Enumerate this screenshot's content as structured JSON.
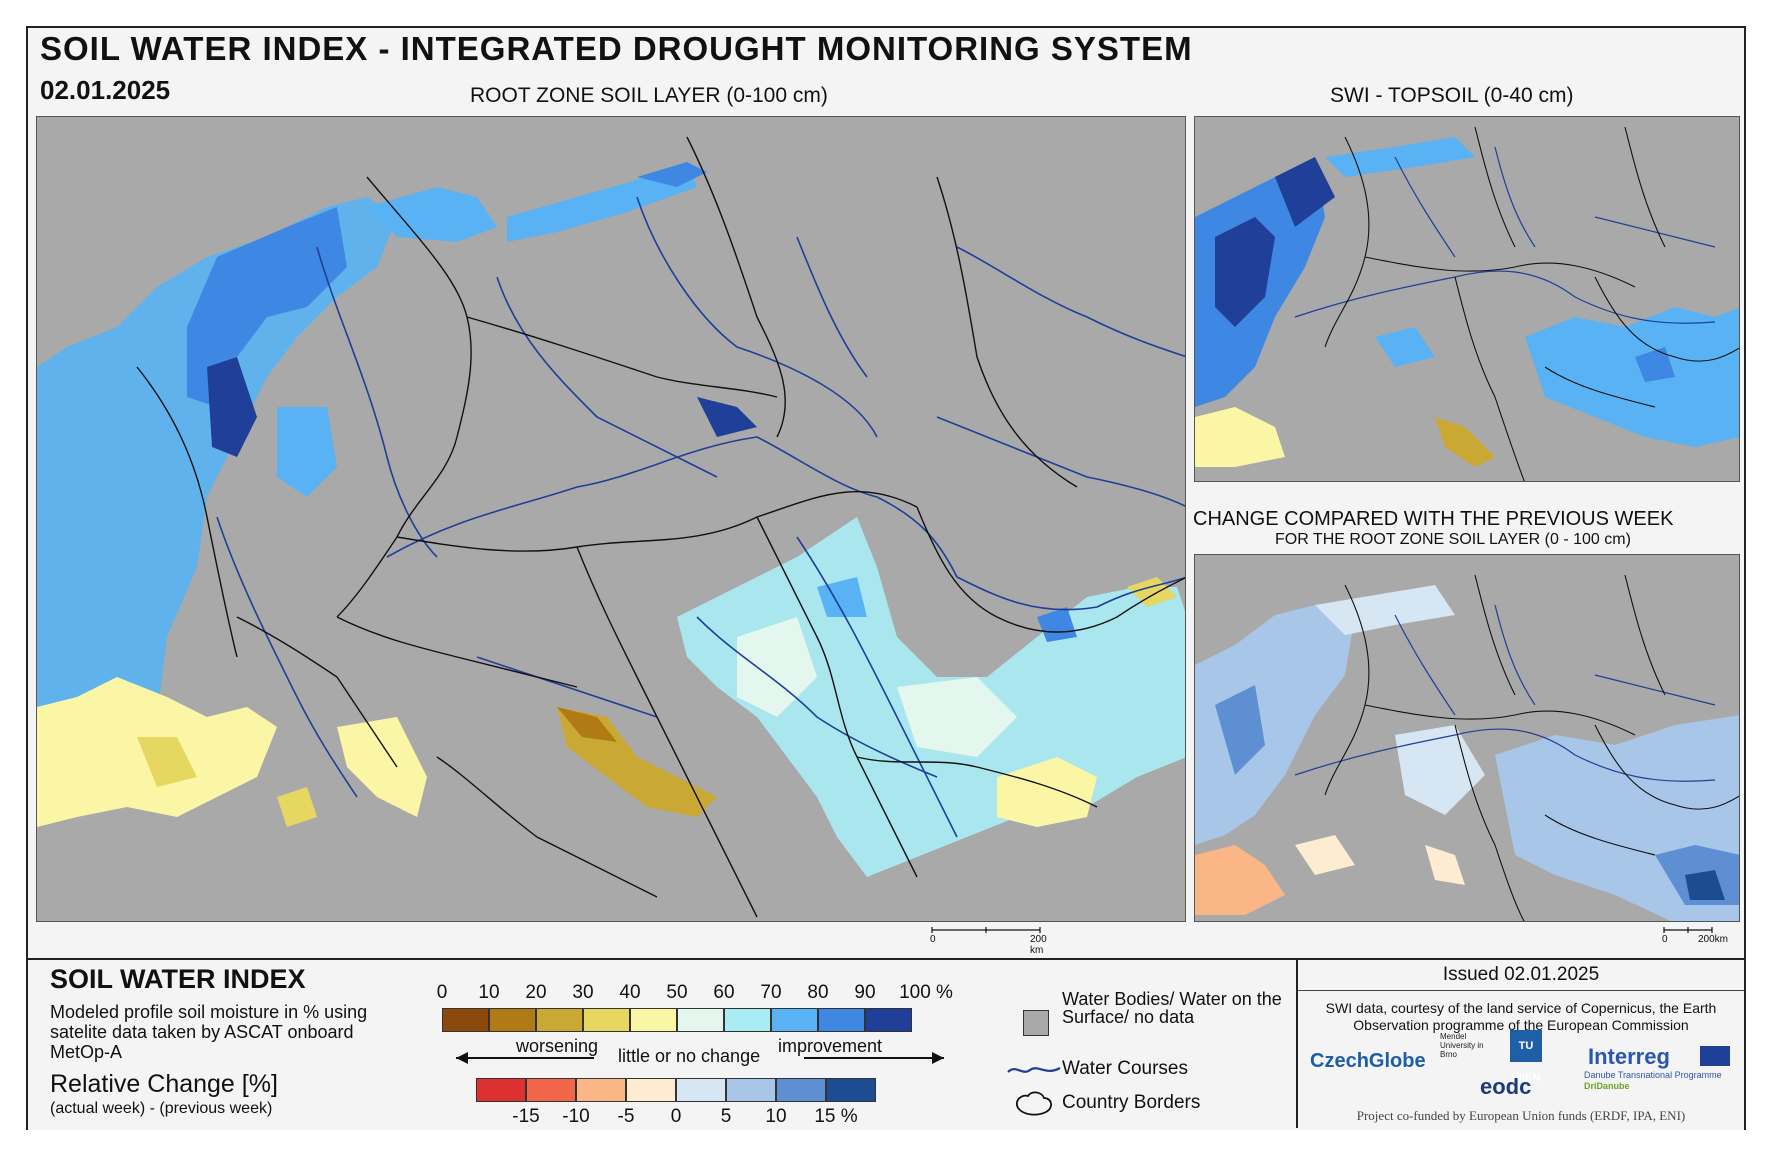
{
  "header": {
    "title": "SOIL WATER INDEX - INTEGRATED DROUGHT MONITORING SYSTEM",
    "date": "02.01.2025",
    "main_map_label": "ROOT ZONE SOIL LAYER (0-100 cm)",
    "topsoil_label": "SWI - TOPSOIL (0-40 cm)",
    "change_label": "CHANGE COMPARED WITH THE PREVIOUS WEEK",
    "change_sublabel": "FOR THE ROOT ZONE SOIL LAYER (0 - 100 cm)"
  },
  "scalebar": {
    "start": "0",
    "end": "200 km",
    "end_small": "200km"
  },
  "legend": {
    "title": "SOIL WATER INDEX",
    "description": "Modeled profile soil moisture in % using satelite data taken by ASCAT onboard MetOp-A",
    "relative_title": "Relative Change [%]",
    "relative_sub": "(actual week) - (previous week)",
    "swi_ticks": [
      "0",
      "10",
      "20",
      "30",
      "40",
      "50",
      "60",
      "70",
      "80",
      "90",
      "100 %"
    ],
    "swi_colors": [
      "#8b4a0c",
      "#b07a16",
      "#c9a933",
      "#e6d761",
      "#fbf6a6",
      "#e4f7ee",
      "#a9ecf4",
      "#58b2f3",
      "#3e87e2",
      "#1f3f98"
    ],
    "worsening": "worsening",
    "little_change": "little or no change",
    "improvement": "improvement",
    "change_ticks": [
      "-15",
      "-10",
      "-5",
      "0",
      "5",
      "10",
      "15 %"
    ],
    "change_colors": [
      "#dc3130",
      "#ef6648",
      "#fbb687",
      "#fdebd2",
      "#d7e6f3",
      "#a8c6e8",
      "#5f8fd3",
      "#1e4c93"
    ],
    "water_bodies": "Water Bodies/ Water on the Surface/ no data",
    "water_courses": "Water Courses",
    "country_borders": "Country Borders"
  },
  "info": {
    "issued": "Issued 02.01.2025",
    "credits": "SWI data, courtesy of the land service of Copernicus, the Earth Observation programme of the European Commission",
    "logos": [
      "CzechGlobe",
      "Mendel University in Brno",
      "TU WIEN",
      "eodc",
      "Interreg",
      "Danube Transnational Programme",
      "DriDanube"
    ],
    "cofund": "Project co-funded by European Union funds (ERDF, IPA, ENI)"
  },
  "colors": {
    "no_data": "#a9a9a9",
    "border": "#111111",
    "river": "#1f3f98"
  }
}
